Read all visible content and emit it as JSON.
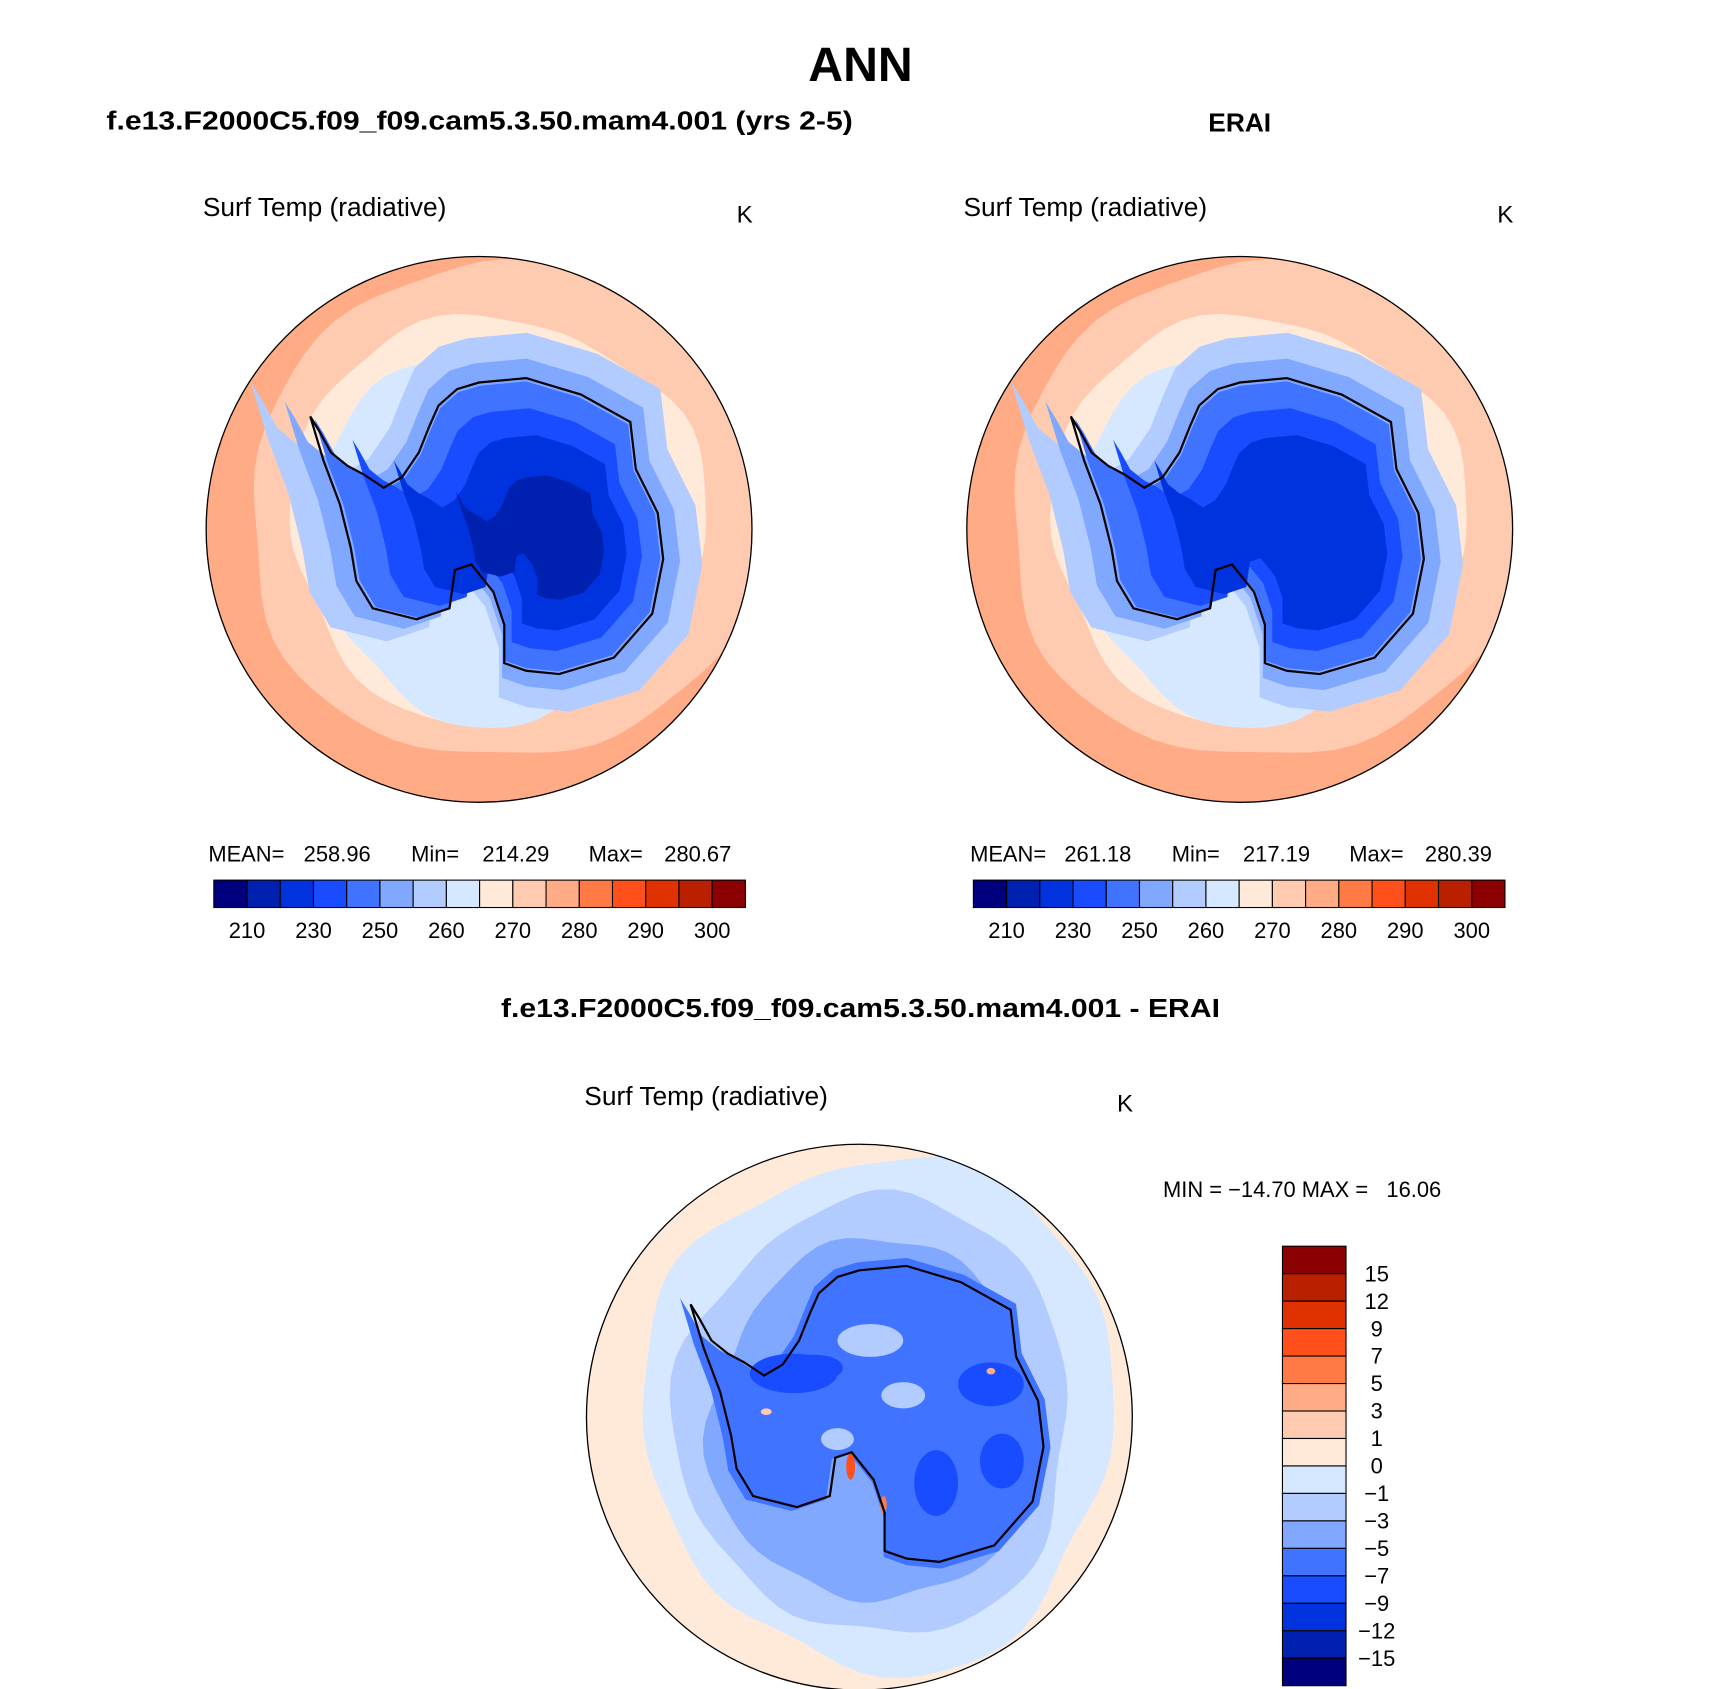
{
  "chart_data": [
    {
      "type": "heatmap",
      "projection": "south-polar-stereographic",
      "season": "ANN",
      "case_title": "f.e13.F2000C5.f09_f09.cam5.3.50.mam4.001 (yrs 2-5)",
      "variable": "Surf Temp (radiative)",
      "units": "K",
      "stats": {
        "mean_label": "MEAN=",
        "mean": "258.96",
        "min_label": "Min=",
        "min": "214.29",
        "max_label": "Max=",
        "max": "280.67"
      },
      "colorbar_labels": [
        "210",
        "230",
        "250",
        "260",
        "270",
        "280",
        "290",
        "300"
      ]
    },
    {
      "type": "heatmap",
      "projection": "south-polar-stereographic",
      "case_title": "ERAI",
      "variable": "Surf Temp (radiative)",
      "units": "K",
      "stats": {
        "mean_label": "MEAN=",
        "mean": "261.18",
        "min_label": "Min=",
        "min": "217.19",
        "max_label": "Max=",
        "max": "280.39"
      },
      "colorbar_labels": [
        "210",
        "230",
        "250",
        "260",
        "270",
        "280",
        "290",
        "300"
      ]
    },
    {
      "type": "heatmap",
      "projection": "south-polar-stereographic",
      "case_title": "f.e13.F2000C5.f09_f09.cam5.3.50.mam4.001 - ERAI",
      "variable": "Surf Temp (radiative)",
      "units": "K",
      "stats_text": "MIN = −14.70 MAX =   16.06",
      "colorbar_labels": [
        "15",
        "12",
        "9",
        "7",
        "5",
        "3",
        "1",
        "0",
        "−1",
        "−3",
        "−5",
        "−7",
        "−9",
        "−12",
        "−15"
      ]
    }
  ],
  "title": "ANN",
  "palette_abs": [
    "#00007f",
    "#0020b0",
    "#0033dd",
    "#1a4cff",
    "#4073ff",
    "#80a8ff",
    "#b3ccff",
    "#d6e8ff",
    "#ffeada",
    "#ffcbb0",
    "#ffab85",
    "#ff7a45",
    "#ff4f1a",
    "#e03200",
    "#b82000",
    "#8b0000"
  ],
  "palette_diff_top_to_bottom": [
    "#8b0000",
    "#b82000",
    "#e03200",
    "#ff4f1a",
    "#ff7a45",
    "#ffab85",
    "#ffcbb0",
    "#ffeada",
    "#d6e8ff",
    "#b3ccff",
    "#80a8ff",
    "#4073ff",
    "#1a4cff",
    "#0033dd",
    "#0020b0",
    "#00007f"
  ]
}
